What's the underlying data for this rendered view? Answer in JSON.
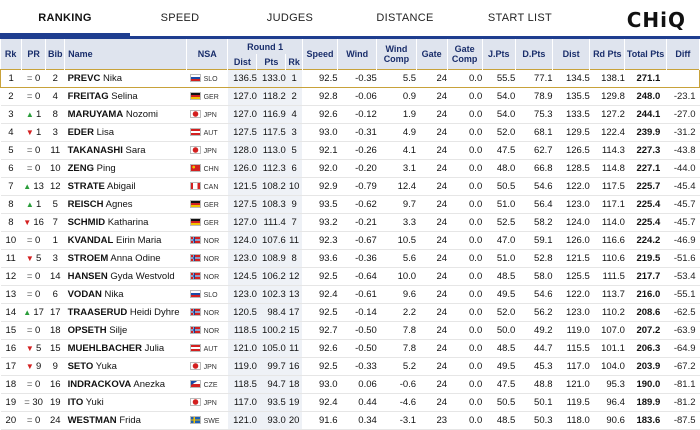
{
  "nav": {
    "tabs": [
      "RANKING",
      "SPEED",
      "JUDGES",
      "DISTANCE",
      "START LIST"
    ],
    "active_tab": "RANKING",
    "logo": "CHiQ"
  },
  "colors": {
    "accent": "#1e3d8f",
    "header_bg": "#dfe4ee",
    "leader_border": "#c8a23a",
    "up": "#2a9d3a",
    "down": "#d32020"
  },
  "table": {
    "headers": {
      "rk": "Rk",
      "pr": "PR",
      "bib": "Bib",
      "name": "Name",
      "nsa": "NSA",
      "round1": "Round 1",
      "dist": "Dist",
      "pts": "Pts",
      "rk2": "Rk",
      "speed": "Speed",
      "wind": "Wind",
      "wind_comp": "Wind Comp",
      "gate": "Gate",
      "gate_comp": "Gate Comp",
      "jpts": "J.Pts",
      "dpts": "D.Pts",
      "dist2": "Dist",
      "rd_pts": "Rd Pts",
      "total": "Total Pts",
      "diff": "Diff"
    },
    "rows": [
      {
        "rk": "1",
        "trend": "eq",
        "pr": "0",
        "bib": "2",
        "last": "PREVC",
        "first": "Nika",
        "nsa": "SLO",
        "dist": "136.5",
        "pts": "133.0",
        "rk2": "1",
        "speed": "92.5",
        "wind": "-0.35",
        "wcomp": "5.5",
        "gate": "24",
        "gcomp": "0.0",
        "jpts": "55.5",
        "dpts": "77.1",
        "dist2": "134.5",
        "rdpts": "138.1",
        "total": "271.1",
        "diff": ""
      },
      {
        "rk": "2",
        "trend": "eq",
        "pr": "0",
        "bib": "4",
        "last": "FREITAG",
        "first": "Selina",
        "nsa": "GER",
        "dist": "127.0",
        "pts": "118.2",
        "rk2": "2",
        "speed": "92.8",
        "wind": "-0.06",
        "wcomp": "0.9",
        "gate": "24",
        "gcomp": "0.0",
        "jpts": "54.0",
        "dpts": "78.9",
        "dist2": "135.5",
        "rdpts": "129.8",
        "total": "248.0",
        "diff": "-23.1"
      },
      {
        "rk": "3",
        "trend": "up",
        "pr": "1",
        "bib": "8",
        "last": "MARUYAMA",
        "first": "Nozomi",
        "nsa": "JPN",
        "dist": "127.0",
        "pts": "116.9",
        "rk2": "4",
        "speed": "92.6",
        "wind": "-0.12",
        "wcomp": "1.9",
        "gate": "24",
        "gcomp": "0.0",
        "jpts": "54.0",
        "dpts": "75.3",
        "dist2": "133.5",
        "rdpts": "127.2",
        "total": "244.1",
        "diff": "-27.0"
      },
      {
        "rk": "4",
        "trend": "dn",
        "pr": "1",
        "bib": "3",
        "last": "EDER",
        "first": "Lisa",
        "nsa": "AUT",
        "dist": "127.5",
        "pts": "117.5",
        "rk2": "3",
        "speed": "93.0",
        "wind": "-0.31",
        "wcomp": "4.9",
        "gate": "24",
        "gcomp": "0.0",
        "jpts": "52.0",
        "dpts": "68.1",
        "dist2": "129.5",
        "rdpts": "122.4",
        "total": "239.9",
        "diff": "-31.2"
      },
      {
        "rk": "5",
        "trend": "eq",
        "pr": "0",
        "bib": "11",
        "last": "TAKANASHI",
        "first": "Sara",
        "nsa": "JPN",
        "dist": "128.0",
        "pts": "113.0",
        "rk2": "5",
        "speed": "92.1",
        "wind": "-0.26",
        "wcomp": "4.1",
        "gate": "24",
        "gcomp": "0.0",
        "jpts": "47.5",
        "dpts": "62.7",
        "dist2": "126.5",
        "rdpts": "114.3",
        "total": "227.3",
        "diff": "-43.8"
      },
      {
        "rk": "6",
        "trend": "eq",
        "pr": "0",
        "bib": "10",
        "last": "ZENG",
        "first": "Ping",
        "nsa": "CHN",
        "dist": "126.0",
        "pts": "112.3",
        "rk2": "6",
        "speed": "92.0",
        "wind": "-0.20",
        "wcomp": "3.1",
        "gate": "24",
        "gcomp": "0.0",
        "jpts": "48.0",
        "dpts": "66.8",
        "dist2": "128.5",
        "rdpts": "114.8",
        "total": "227.1",
        "diff": "-44.0"
      },
      {
        "rk": "7",
        "trend": "up",
        "pr": "13",
        "bib": "12",
        "last": "STRATE",
        "first": "Abigail",
        "nsa": "CAN",
        "dist": "121.5",
        "pts": "108.2",
        "rk2": "10",
        "speed": "92.9",
        "wind": "-0.79",
        "wcomp": "12.4",
        "gate": "24",
        "gcomp": "0.0",
        "jpts": "50.5",
        "dpts": "54.6",
        "dist2": "122.0",
        "rdpts": "117.5",
        "total": "225.7",
        "diff": "-45.4"
      },
      {
        "rk": "8",
        "trend": "up",
        "pr": "1",
        "bib": "5",
        "last": "REISCH",
        "first": "Agnes",
        "nsa": "GER",
        "dist": "127.5",
        "pts": "108.3",
        "rk2": "9",
        "speed": "93.5",
        "wind": "-0.62",
        "wcomp": "9.7",
        "gate": "24",
        "gcomp": "0.0",
        "jpts": "51.0",
        "dpts": "56.4",
        "dist2": "123.0",
        "rdpts": "117.1",
        "total": "225.4",
        "diff": "-45.7"
      },
      {
        "rk": "8",
        "trend": "dn",
        "pr": "16",
        "bib": "7",
        "last": "SCHMID",
        "first": "Katharina",
        "nsa": "GER",
        "dist": "127.0",
        "pts": "111.4",
        "rk2": "7",
        "speed": "93.2",
        "wind": "-0.21",
        "wcomp": "3.3",
        "gate": "24",
        "gcomp": "0.0",
        "jpts": "52.5",
        "dpts": "58.2",
        "dist2": "124.0",
        "rdpts": "114.0",
        "total": "225.4",
        "diff": "-45.7"
      },
      {
        "rk": "10",
        "trend": "eq",
        "pr": "0",
        "bib": "1",
        "last": "KVANDAL",
        "first": "Eirin Maria",
        "nsa": "NOR",
        "dist": "124.0",
        "pts": "107.6",
        "rk2": "11",
        "speed": "92.3",
        "wind": "-0.67",
        "wcomp": "10.5",
        "gate": "24",
        "gcomp": "0.0",
        "jpts": "47.0",
        "dpts": "59.1",
        "dist2": "126.0",
        "rdpts": "116.6",
        "total": "224.2",
        "diff": "-46.9"
      },
      {
        "rk": "11",
        "trend": "dn",
        "pr": "5",
        "bib": "3",
        "last": "STROEM",
        "first": "Anna Odine",
        "nsa": "NOR",
        "dist": "123.0",
        "pts": "108.9",
        "rk2": "8",
        "speed": "93.6",
        "wind": "-0.36",
        "wcomp": "5.6",
        "gate": "24",
        "gcomp": "0.0",
        "jpts": "51.0",
        "dpts": "52.8",
        "dist2": "121.5",
        "rdpts": "110.6",
        "total": "219.5",
        "diff": "-51.6"
      },
      {
        "rk": "12",
        "trend": "eq",
        "pr": "0",
        "bib": "14",
        "last": "HANSEN",
        "first": "Gyda Westvold",
        "nsa": "NOR",
        "dist": "124.5",
        "pts": "106.2",
        "rk2": "12",
        "speed": "92.5",
        "wind": "-0.64",
        "wcomp": "10.0",
        "gate": "24",
        "gcomp": "0.0",
        "jpts": "48.5",
        "dpts": "58.0",
        "dist2": "125.5",
        "rdpts": "111.5",
        "total": "217.7",
        "diff": "-53.4"
      },
      {
        "rk": "13",
        "trend": "eq",
        "pr": "0",
        "bib": "6",
        "last": "VODAN",
        "first": "Nika",
        "nsa": "SLO",
        "dist": "123.0",
        "pts": "102.3",
        "rk2": "13",
        "speed": "92.4",
        "wind": "-0.61",
        "wcomp": "9.6",
        "gate": "24",
        "gcomp": "0.0",
        "jpts": "49.5",
        "dpts": "54.6",
        "dist2": "122.0",
        "rdpts": "113.7",
        "total": "216.0",
        "diff": "-55.1"
      },
      {
        "rk": "14",
        "trend": "up",
        "pr": "17",
        "bib": "17",
        "last": "TRAASERUD",
        "first": "Heidi Dyhre",
        "nsa": "NOR",
        "dist": "120.5",
        "pts": "98.4",
        "rk2": "17",
        "speed": "92.5",
        "wind": "-0.14",
        "wcomp": "2.2",
        "gate": "24",
        "gcomp": "0.0",
        "jpts": "52.0",
        "dpts": "56.2",
        "dist2": "123.0",
        "rdpts": "110.2",
        "total": "208.6",
        "diff": "-62.5"
      },
      {
        "rk": "15",
        "trend": "eq",
        "pr": "0",
        "bib": "18",
        "last": "OPSETH",
        "first": "Silje",
        "nsa": "NOR",
        "dist": "118.5",
        "pts": "100.2",
        "rk2": "15",
        "speed": "92.7",
        "wind": "-0.50",
        "wcomp": "7.8",
        "gate": "24",
        "gcomp": "0.0",
        "jpts": "50.0",
        "dpts": "49.2",
        "dist2": "119.0",
        "rdpts": "107.0",
        "total": "207.2",
        "diff": "-63.9"
      },
      {
        "rk": "16",
        "trend": "dn",
        "pr": "5",
        "bib": "15",
        "last": "MUEHLBACHER",
        "first": "Julia",
        "nsa": "AUT",
        "dist": "121.0",
        "pts": "105.0",
        "rk2": "11",
        "speed": "92.6",
        "wind": "-0.50",
        "wcomp": "7.8",
        "gate": "24",
        "gcomp": "0.0",
        "jpts": "48.5",
        "dpts": "44.7",
        "dist2": "115.5",
        "rdpts": "101.1",
        "total": "206.3",
        "diff": "-64.9"
      },
      {
        "rk": "17",
        "trend": "dn",
        "pr": "9",
        "bib": "9",
        "last": "SETO",
        "first": "Yuka",
        "nsa": "JPN",
        "dist": "119.0",
        "pts": "99.7",
        "rk2": "16",
        "speed": "92.5",
        "wind": "-0.33",
        "wcomp": "5.2",
        "gate": "24",
        "gcomp": "0.0",
        "jpts": "49.5",
        "dpts": "45.3",
        "dist2": "117.0",
        "rdpts": "104.0",
        "total": "203.9",
        "diff": "-67.2"
      },
      {
        "rk": "18",
        "trend": "eq",
        "pr": "0",
        "bib": "16",
        "last": "INDRACKOVA",
        "first": "Anezka",
        "nsa": "CZE",
        "dist": "118.5",
        "pts": "94.7",
        "rk2": "18",
        "speed": "93.0",
        "wind": "0.06",
        "wcomp": "-0.6",
        "gate": "24",
        "gcomp": "0.0",
        "jpts": "47.5",
        "dpts": "48.8",
        "dist2": "121.0",
        "rdpts": "95.3",
        "total": "190.0",
        "diff": "-81.1"
      },
      {
        "rk": "19",
        "trend": "eq",
        "pr": "30",
        "bib": "19",
        "last": "ITO",
        "first": "Yuki",
        "nsa": "JPN",
        "dist": "117.0",
        "pts": "93.5",
        "rk2": "19",
        "speed": "92.4",
        "wind": "0.44",
        "wcomp": "-4.6",
        "gate": "24",
        "gcomp": "0.0",
        "jpts": "50.5",
        "dpts": "50.1",
        "dist2": "119.5",
        "rdpts": "96.4",
        "total": "189.9",
        "diff": "-81.2"
      },
      {
        "rk": "20",
        "trend": "eq",
        "pr": "0",
        "bib": "24",
        "last": "WESTMAN",
        "first": "Frida",
        "nsa": "SWE",
        "dist": "121.0",
        "pts": "93.0",
        "rk2": "20",
        "speed": "91.6",
        "wind": "0.34",
        "wcomp": "-3.1",
        "gate": "23",
        "gcomp": "0.0",
        "jpts": "48.5",
        "dpts": "50.3",
        "dist2": "118.0",
        "rdpts": "90.6",
        "total": "183.6",
        "diff": "-87.5"
      }
    ]
  }
}
